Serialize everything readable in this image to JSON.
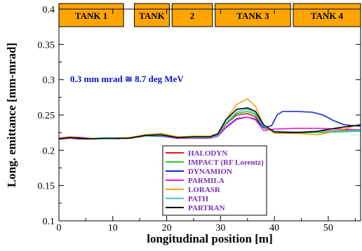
{
  "chart_data": {
    "type": "line",
    "xlabel": "longitudinal position  [m]",
    "ylabel": "Long. emittance  [mm-mrad]",
    "xlim": [
      0,
      56
    ],
    "ylim": [
      0.1,
      0.4
    ],
    "x_ticks": [
      "0",
      "10",
      "20",
      "30",
      "40",
      "50"
    ],
    "y_ticks": [
      "0.1",
      "0.15",
      "0.2",
      "0.25",
      "0.3",
      "0.35",
      "0.4"
    ],
    "annotation": "0.3 mm mrad ≅ 8.7 deg MeV",
    "tanks": [
      {
        "label": "TANK 1",
        "x0": 0,
        "x1": 12
      },
      {
        "label": "TANK",
        "x0": 14,
        "x1": 20.5
      },
      {
        "label": "2",
        "x0": 21,
        "x1": 28.5
      },
      {
        "label": "TANK 3",
        "x0": 29,
        "x1": 43
      },
      {
        "label": "TANK 4",
        "x0": 43.5,
        "x1": 56
      }
    ],
    "legend_position": "bottom-center",
    "series": [
      {
        "name": "HALODYN",
        "color": "#e8141e",
        "x": [
          0,
          2,
          4,
          6,
          8,
          10,
          13,
          16,
          19,
          22,
          25,
          28,
          29.5,
          31,
          33,
          35,
          36.5,
          38,
          40,
          44,
          48,
          52,
          56
        ],
        "y": [
          0.217,
          0.219,
          0.218,
          0.217,
          0.216,
          0.216,
          0.217,
          0.221,
          0.222,
          0.218,
          0.218,
          0.218,
          0.221,
          0.237,
          0.25,
          0.252,
          0.247,
          0.232,
          0.226,
          0.225,
          0.226,
          0.228,
          0.228
        ]
      },
      {
        "name": "IMPACT (RF Lorentz)",
        "color": "#22d02a",
        "x": [
          0,
          2,
          4,
          6,
          8,
          10,
          13,
          16,
          19,
          22,
          25,
          28,
          29.5,
          31,
          33,
          35,
          36.5,
          38,
          40,
          44,
          48,
          52,
          56
        ],
        "y": [
          0.216,
          0.218,
          0.217,
          0.216,
          0.216,
          0.216,
          0.217,
          0.22,
          0.221,
          0.218,
          0.218,
          0.218,
          0.221,
          0.238,
          0.252,
          0.255,
          0.25,
          0.233,
          0.226,
          0.225,
          0.225,
          0.226,
          0.227
        ]
      },
      {
        "name": "DYNAMION",
        "color": "#1226c8",
        "x": [
          0,
          2,
          4,
          6,
          8,
          10,
          13,
          16,
          19,
          22,
          25,
          28,
          29.5,
          31,
          33,
          35,
          36.5,
          38,
          39.5,
          40.5,
          41.5,
          44,
          47,
          49,
          51,
          53,
          56
        ],
        "y": [
          0.216,
          0.217,
          0.216,
          0.216,
          0.216,
          0.216,
          0.217,
          0.22,
          0.22,
          0.217,
          0.217,
          0.217,
          0.22,
          0.232,
          0.244,
          0.247,
          0.244,
          0.232,
          0.235,
          0.25,
          0.255,
          0.255,
          0.254,
          0.25,
          0.242,
          0.236,
          0.234
        ]
      },
      {
        "name": "PARMILA",
        "color": "#e020d8",
        "x": [
          0,
          2,
          4,
          6,
          8,
          10,
          13,
          16,
          19,
          22,
          25,
          28,
          29.5,
          31,
          33,
          35,
          36.5,
          38,
          40,
          44,
          48,
          52,
          56
        ],
        "y": [
          0.216,
          0.217,
          0.217,
          0.216,
          0.216,
          0.216,
          0.217,
          0.22,
          0.221,
          0.217,
          0.217,
          0.217,
          0.22,
          0.233,
          0.245,
          0.247,
          0.243,
          0.228,
          0.23,
          0.231,
          0.231,
          0.23,
          0.229
        ]
      },
      {
        "name": "LORASR",
        "color": "#f0a020",
        "x": [
          0,
          2,
          4,
          6,
          8,
          10,
          13,
          16,
          19,
          22,
          25,
          28,
          29.5,
          31,
          33,
          35,
          36.5,
          38,
          40,
          44,
          48,
          52,
          56
        ],
        "y": [
          0.216,
          0.219,
          0.217,
          0.217,
          0.217,
          0.217,
          0.218,
          0.222,
          0.224,
          0.219,
          0.22,
          0.22,
          0.224,
          0.243,
          0.265,
          0.273,
          0.262,
          0.235,
          0.224,
          0.224,
          0.222,
          0.228,
          0.237
        ]
      },
      {
        "name": "PATH",
        "color": "#40d0c8",
        "x": [
          0,
          2,
          4,
          6,
          8,
          10,
          13,
          16,
          19,
          22,
          25,
          28,
          29.5,
          31,
          33,
          35,
          36.5,
          38,
          40,
          44,
          48,
          52,
          56
        ],
        "y": [
          0.216,
          0.218,
          0.217,
          0.216,
          0.216,
          0.216,
          0.217,
          0.22,
          0.221,
          0.218,
          0.218,
          0.218,
          0.221,
          0.239,
          0.254,
          0.258,
          0.252,
          0.234,
          0.227,
          0.226,
          0.226,
          0.227,
          0.228
        ]
      },
      {
        "name": "PARTRAN",
        "color": "#000000",
        "x": [
          0,
          2,
          4,
          6,
          8,
          10,
          13,
          16,
          19,
          22,
          25,
          28,
          29.5,
          31,
          33,
          35,
          36.5,
          38,
          40,
          44,
          48,
          52,
          56
        ],
        "y": [
          0.216,
          0.218,
          0.217,
          0.216,
          0.217,
          0.217,
          0.217,
          0.221,
          0.222,
          0.218,
          0.219,
          0.219,
          0.223,
          0.243,
          0.258,
          0.26,
          0.255,
          0.236,
          0.226,
          0.225,
          0.227,
          0.232,
          0.236
        ]
      }
    ]
  }
}
